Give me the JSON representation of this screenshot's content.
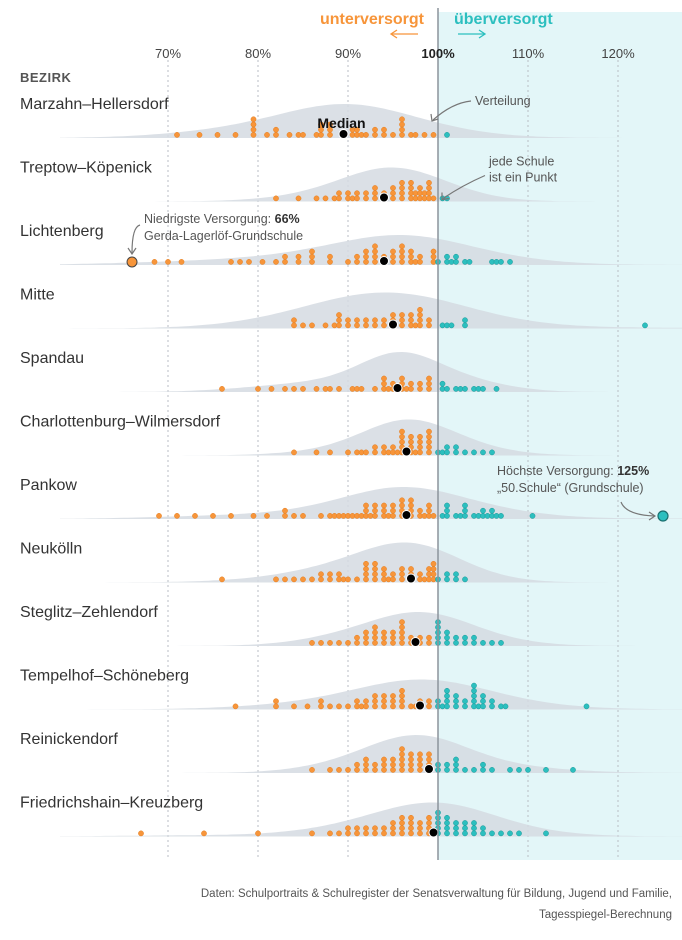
{
  "chart_data": {
    "type": "scatter",
    "subtype": "beeswarm-with-density",
    "legend_under": "unterversorgt",
    "legend_over": "überversorgt",
    "axis_ticks": [
      "70%",
      "80%",
      "90%",
      "100%",
      "110%",
      "120%"
    ],
    "axis_tick_values": [
      70,
      80,
      90,
      100,
      110,
      120
    ],
    "xlim": [
      60,
      126
    ],
    "row_header": "BEZIRK",
    "colors": {
      "under": "#f7953a",
      "over": "#2cbfbf",
      "density": "#d5dbe2",
      "median": "#000000",
      "over_band": "#e3f6f8"
    },
    "annotations": {
      "median": "Median",
      "distribution": "Verteilung",
      "school_point_1": "jede Schule",
      "school_point_2": "ist ein Punkt",
      "lowest_prefix": "Niedrigste Versorgung: ",
      "lowest_value": "66%",
      "lowest_school": "Gerda-Lagerlöf-Grundschule",
      "highest_prefix": "Höchste Versorgung: ",
      "highest_value": "125%",
      "highest_school": "„50.Schule“ (Grundschule)"
    },
    "districts": [
      {
        "name": "Marzahn–Hellersdorf",
        "median": 89.5,
        "peak": 89.5,
        "spread": 7.0,
        "height": 34,
        "values": [
          71,
          73.5,
          75.5,
          77.5,
          79.5,
          79.5,
          79.5,
          79.5,
          81,
          82,
          82,
          83.5,
          84.5,
          85,
          86.5,
          87,
          87,
          87,
          88,
          88,
          88,
          89.5,
          90.5,
          90.5,
          91,
          91,
          91.5,
          92,
          93,
          93,
          94,
          94,
          95,
          96,
          96,
          96,
          96,
          97,
          97.5,
          98.5,
          99.5,
          101
        ]
      },
      {
        "name": "Treptow–Köpenick",
        "median": 94,
        "peak": 94.5,
        "spread": 5.5,
        "height": 34,
        "values": [
          82,
          84.5,
          86.5,
          87.5,
          88.5,
          89,
          89,
          90,
          90,
          90.5,
          91,
          91,
          92,
          92,
          93,
          93,
          93,
          94,
          94,
          95,
          95,
          95,
          96,
          96,
          96,
          96,
          97,
          97,
          97,
          97,
          97.5,
          97.5,
          98,
          98,
          98,
          98.5,
          98.5,
          99,
          99,
          99,
          99,
          99.5,
          100.5,
          101
        ]
      },
      {
        "name": "Lichtenberg",
        "median": 94,
        "peak": 96,
        "spread": 7.5,
        "height": 30,
        "values": [
          66,
          68.5,
          70,
          71.5,
          77,
          78,
          79,
          80.5,
          82,
          83,
          83,
          84.5,
          84.5,
          86,
          86,
          86,
          88,
          88,
          90,
          91,
          91,
          92,
          92,
          92,
          93,
          93,
          93,
          93,
          94,
          94,
          95,
          95,
          95,
          96,
          96,
          96,
          96,
          97,
          97,
          97,
          97.5,
          98,
          98,
          99.5,
          99.5,
          99.5,
          100,
          101,
          101,
          101.5,
          102,
          102,
          103,
          103.5,
          106,
          106.5,
          107,
          108
        ]
      },
      {
        "name": "Mitte",
        "median": 95,
        "peak": 94,
        "spread": 8.5,
        "height": 36,
        "values": [
          84,
          84,
          85,
          86,
          87.5,
          88.5,
          89,
          89,
          89,
          90,
          90,
          91,
          91,
          92,
          92,
          93,
          93,
          94,
          94,
          95,
          95,
          95,
          96,
          96,
          96,
          97,
          97,
          97,
          97.5,
          98,
          98,
          98,
          98,
          99,
          99,
          100.5,
          101,
          101.5,
          103,
          103,
          123
        ]
      },
      {
        "name": "Spandau",
        "median": 95.5,
        "peak": 95.5,
        "spread": 4.5,
        "height": 40,
        "values": [
          76,
          80,
          81.5,
          83,
          84,
          85,
          86.5,
          87.5,
          88,
          89,
          90.5,
          91,
          91.5,
          93,
          94,
          94,
          94,
          94.5,
          95,
          95,
          96,
          96,
          96,
          96.5,
          97,
          97,
          98,
          98,
          99,
          99,
          99,
          100.5,
          100.5,
          101,
          102,
          102.5,
          103,
          104,
          104.5,
          105,
          106.5
        ]
      },
      {
        "name": "Charlottenburg–Wilmersdorf",
        "median": 96.5,
        "peak": 96.5,
        "spread": 5.0,
        "height": 36,
        "values": [
          84,
          86.5,
          88,
          90,
          91,
          91.5,
          92,
          93,
          93,
          94,
          94,
          94.5,
          95,
          95,
          95.5,
          96,
          96,
          96,
          96,
          96,
          97,
          97,
          97,
          97,
          97.5,
          98,
          98,
          98,
          98,
          99,
          99,
          99,
          99,
          99,
          100,
          100.5,
          101,
          101,
          102,
          102,
          103,
          104,
          105,
          106
        ]
      },
      {
        "name": "Pankow",
        "median": 96.5,
        "peak": 96,
        "spread": 6.5,
        "height": 32,
        "values": [
          69,
          71,
          73,
          75,
          77,
          79.5,
          81,
          83,
          83,
          84,
          85,
          87,
          88,
          88.5,
          89,
          89.5,
          90,
          90.5,
          91,
          91.5,
          92,
          92,
          92,
          92.5,
          93,
          93,
          93,
          94,
          94,
          94,
          94.5,
          95,
          95,
          95,
          96,
          96,
          96,
          96,
          97,
          97,
          97,
          97,
          98,
          98,
          98.5,
          99,
          99,
          99,
          99.5,
          100.5,
          101,
          101,
          101,
          102,
          102.5,
          103,
          103,
          103,
          104,
          104.5,
          105,
          105,
          105.5,
          106,
          106,
          106.5,
          107,
          110.5,
          125
        ]
      },
      {
        "name": "Neukölln",
        "median": 97,
        "peak": 97,
        "spread": 5.5,
        "height": 40,
        "values": [
          76,
          82,
          83,
          84,
          85,
          86,
          87,
          87,
          88,
          88,
          89,
          89,
          89.5,
          90,
          91,
          92,
          92,
          92,
          92,
          93,
          93,
          93,
          93,
          94,
          94,
          94,
          94.5,
          95,
          95,
          96,
          96,
          96,
          97,
          97,
          97,
          98,
          98,
          98.5,
          99,
          99,
          99,
          99.5,
          99.5,
          99.5,
          99.5,
          100,
          101,
          101,
          102,
          102,
          103
        ]
      },
      {
        "name": "Steglitz–Zehlendorf",
        "median": 97.5,
        "peak": 98.5,
        "spread": 5.5,
        "height": 34,
        "values": [
          86,
          87,
          88,
          89,
          90,
          91,
          91,
          92,
          92,
          92,
          93,
          93,
          93,
          93,
          94,
          94,
          94,
          95,
          95,
          95,
          96,
          96,
          96,
          96,
          96,
          97,
          97,
          98,
          98,
          99,
          99,
          100,
          100,
          100,
          100,
          100,
          101,
          101,
          101,
          102,
          102,
          103,
          103,
          104,
          104,
          105,
          106,
          107
        ]
      },
      {
        "name": "Tempelhof–Schöneberg",
        "median": 98,
        "peak": 98,
        "spread": 7.0,
        "height": 30,
        "values": [
          77.5,
          82,
          82,
          84,
          85.5,
          87,
          87,
          88,
          89,
          90,
          91,
          91,
          91.5,
          92,
          92,
          93,
          93,
          93,
          94,
          94,
          94,
          95,
          95,
          95,
          96,
          96,
          96,
          96,
          97,
          97.5,
          98,
          98,
          99,
          99,
          100,
          100,
          100.5,
          101,
          101,
          101,
          101,
          102,
          102,
          102,
          103,
          103,
          104,
          104,
          104,
          104,
          104,
          104.5,
          105,
          105,
          105,
          106,
          106,
          107,
          107.5,
          116.5
        ]
      },
      {
        "name": "Reinickendorf",
        "median": 99,
        "peak": 98,
        "spread": 5.5,
        "height": 38,
        "values": [
          86,
          88,
          89,
          90,
          91,
          91,
          92,
          92,
          92,
          93,
          93,
          94,
          94,
          94,
          95,
          95,
          95,
          96,
          96,
          96,
          96,
          96,
          97,
          97,
          97,
          97,
          98,
          98,
          98,
          98,
          99,
          99,
          99,
          99,
          100,
          100,
          101,
          101,
          102,
          102,
          102,
          103,
          104,
          105,
          105,
          106,
          108,
          109,
          110,
          112,
          115
        ]
      },
      {
        "name": "Friedrichshain–Kreuzberg",
        "median": 99.5,
        "peak": 100,
        "spread": 6.5,
        "height": 34,
        "values": [
          67,
          74,
          80,
          86,
          88,
          89,
          90,
          90,
          91,
          91,
          92,
          92,
          93,
          93,
          94,
          94,
          95,
          95,
          95,
          96,
          96,
          96,
          96,
          97,
          97,
          97,
          97,
          98,
          98,
          98,
          99,
          99,
          99,
          99,
          100,
          100,
          100,
          100,
          100,
          101,
          101,
          101,
          101,
          102,
          102,
          102,
          103,
          103,
          103,
          104,
          104,
          104,
          105,
          105,
          106,
          107,
          108,
          109,
          112
        ]
      }
    ]
  },
  "footer": {
    "source_line1": "Daten: Schulportraits & Schulregister der Senatsverwaltung für Bildung, Jugend und Familie,",
    "source_line2": "Tagesspiegel-Berechnung"
  }
}
